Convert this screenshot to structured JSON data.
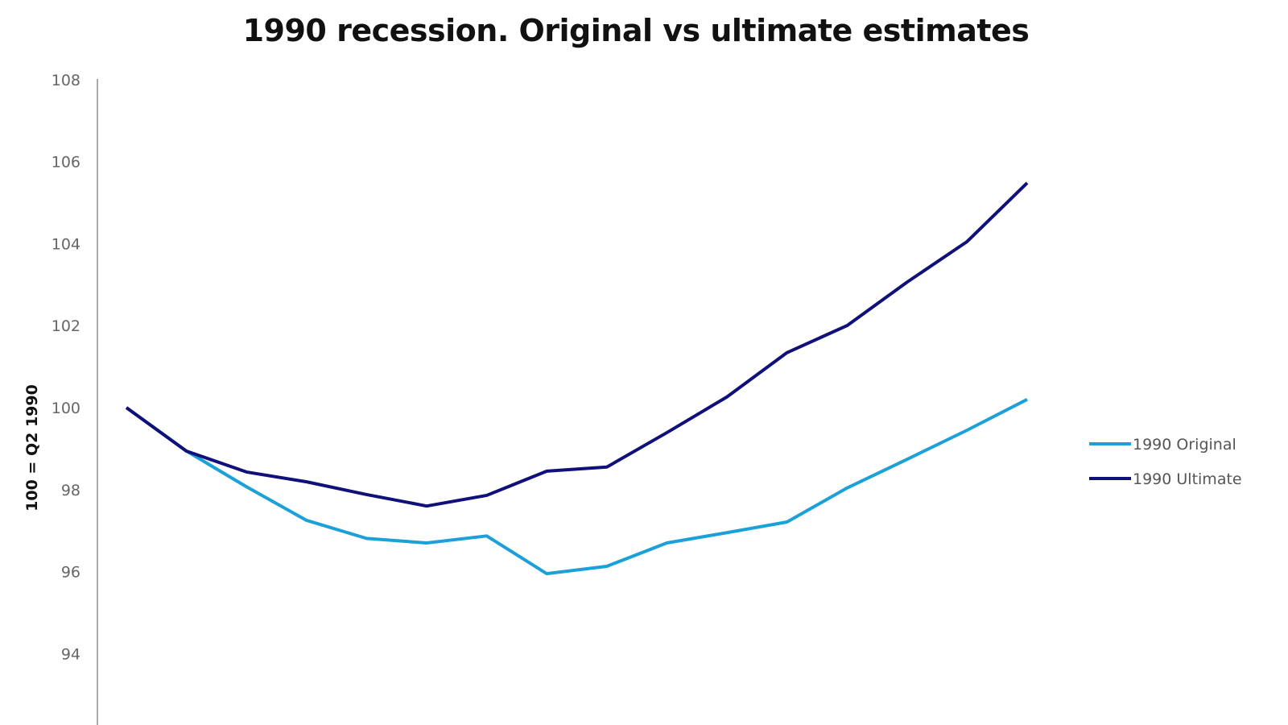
{
  "chart_data": {
    "type": "line",
    "title": "1990 recession. Original vs ultimate estimates",
    "xlabel": "",
    "ylabel": "100 = Q2 1990",
    "ylim": [
      92,
      108
    ],
    "yticks": [
      94,
      96,
      98,
      100,
      102,
      104,
      106,
      108
    ],
    "x": [
      0,
      1,
      2,
      3,
      4,
      5,
      6,
      7,
      8,
      9,
      10,
      11,
      12,
      13,
      14,
      15
    ],
    "grid": false,
    "legend_position": "right",
    "series": [
      {
        "name": "1990 Original",
        "color": "#1ba1d8",
        "values": [
          100.0,
          98.94,
          98.07,
          97.25,
          96.81,
          96.7,
          96.87,
          95.95,
          96.13,
          96.7,
          96.95,
          97.21,
          98.04,
          98.74,
          99.45,
          100.2
        ]
      },
      {
        "name": "1990 Ultimate",
        "color": "#10107a",
        "values": [
          100.0,
          98.94,
          98.43,
          98.19,
          97.88,
          97.6,
          97.86,
          98.45,
          98.55,
          99.39,
          100.26,
          101.34,
          102.0,
          103.06,
          104.05,
          105.48
        ]
      }
    ]
  }
}
